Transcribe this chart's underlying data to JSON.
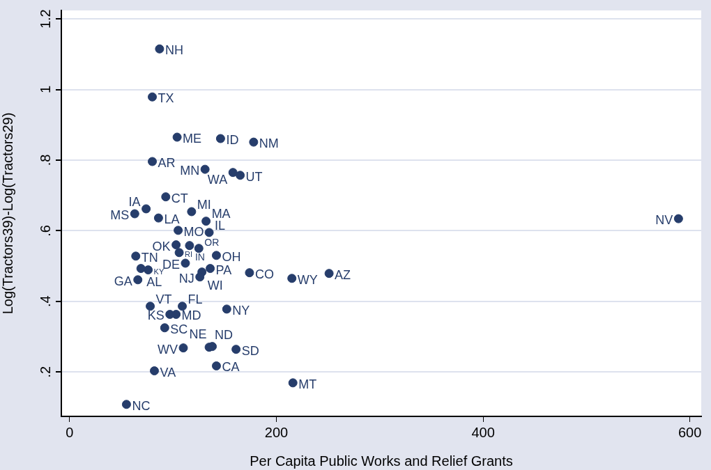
{
  "chart_data": {
    "type": "scatter",
    "xlabel": "Per Capita Public Works and Relief Grants",
    "ylabel": "Log(Tractors39)-Log(Tractors29)",
    "xlim": [
      -8,
      611
    ],
    "xticks": [
      0,
      200,
      400,
      600
    ],
    "ylim": [
      0.074,
      1.224
    ],
    "yticks": [
      {
        "value": 0.2,
        "label": ".2"
      },
      {
        "value": 0.4,
        "label": ".4"
      },
      {
        "value": 0.6,
        "label": ".6"
      },
      {
        "value": 0.8,
        "label": ".8"
      },
      {
        "value": 1,
        "label": "1"
      },
      {
        "value": 1.2,
        "label": "1.2"
      }
    ],
    "grid": "y",
    "legend": false,
    "marker": "circle",
    "series": [
      {
        "color": "#263d6b",
        "x": [
          87,
          80,
          104,
          146,
          178,
          80,
          131,
          158,
          165,
          93,
          74,
          63,
          86,
          118,
          132,
          589,
          105,
          135,
          64,
          69,
          76,
          66,
          103,
          116,
          125,
          106,
          142,
          112,
          136,
          128,
          126,
          174,
          215,
          251,
          78,
          109,
          152,
          103,
          97,
          92,
          110,
          135,
          138,
          161,
          142,
          82,
          216,
          55
        ],
        "values": [
          1.115,
          0.979,
          0.865,
          0.861,
          0.851,
          0.796,
          0.774,
          0.765,
          0.757,
          0.696,
          0.662,
          0.648,
          0.636,
          0.654,
          0.627,
          0.634,
          0.601,
          0.595,
          0.528,
          0.493,
          0.489,
          0.461,
          0.56,
          0.558,
          0.55,
          0.538,
          0.53,
          0.508,
          0.493,
          0.483,
          0.469,
          0.481,
          0.465,
          0.479,
          0.386,
          0.386,
          0.378,
          0.363,
          0.363,
          0.325,
          0.268,
          0.27,
          0.272,
          0.264,
          0.217,
          0.203,
          0.169,
          0.108
        ],
        "value_labels": [
          "NH",
          "TX",
          "ME",
          "ID",
          "NM",
          "AR",
          "MN",
          "WA",
          "UT",
          "CT",
          "IA",
          "MS",
          "LA",
          "MI",
          "MA",
          "NV",
          "MO",
          "IL",
          "TN",
          "AL",
          "KY",
          "GA",
          "OK",
          "IN",
          "OR",
          "RI",
          "OH",
          "DE",
          "PA",
          "WI",
          "NJ",
          "CO",
          "WY",
          "AZ",
          "VT",
          "FL",
          "NY",
          "MD",
          "KS",
          "SC",
          "WV",
          "ND",
          "NE",
          "SD",
          "CA",
          "VA",
          "MT",
          "NC"
        ]
      }
    ]
  }
}
